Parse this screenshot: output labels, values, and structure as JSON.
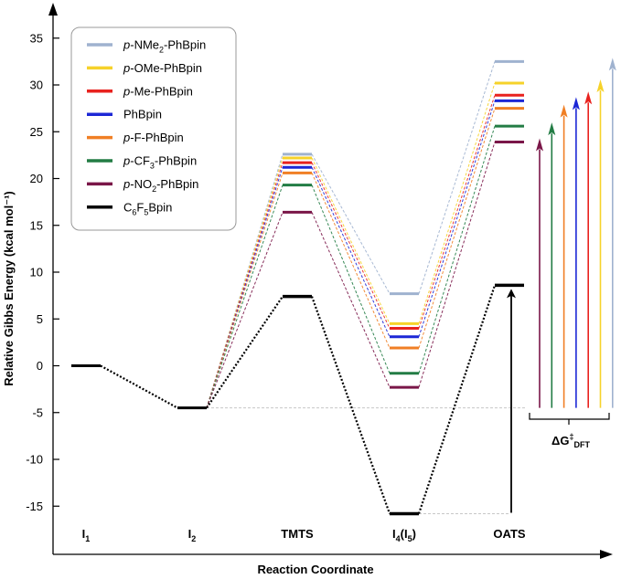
{
  "chart_data": {
    "type": "line",
    "title": "",
    "xlabel": "Reaction Coordinate",
    "ylabel": "Relative Gibbs Energy (kcal mol⁻¹)",
    "ylim": [
      -17,
      37
    ],
    "yticks": [
      35,
      30,
      25,
      20,
      15,
      10,
      5,
      0,
      -5,
      -10,
      -15
    ],
    "stages": [
      {
        "key": "I1",
        "base": "I",
        "sub": "1",
        "after": "",
        "sub2": "",
        "after2": ""
      },
      {
        "key": "I2",
        "base": "I",
        "sub": "2",
        "after": "",
        "sub2": "",
        "after2": ""
      },
      {
        "key": "TMTS",
        "base": "TMTS",
        "sub": "",
        "after": "",
        "sub2": "",
        "after2": ""
      },
      {
        "key": "I4",
        "base": "I",
        "sub": "4",
        "after": "(I",
        "sub2": "5",
        "after2": ")"
      },
      {
        "key": "OATS",
        "base": "OATS",
        "sub": "",
        "after": "",
        "sub2": "",
        "after2": ""
      }
    ],
    "shared_start": {
      "I1": 0.0,
      "I2": -4.5
    },
    "series": [
      {
        "name": "p-NMe2-PhBpin",
        "color": "#9fb2cf",
        "lparts": [
          {
            "t": "p",
            "i": true
          },
          {
            "t": "-NMe"
          },
          {
            "t": "2",
            "s": true
          },
          {
            "t": "-PhBpin"
          }
        ],
        "values": {
          "TMTS": 22.6,
          "I4": 7.7,
          "OATS": 32.5
        }
      },
      {
        "name": "p-OMe-PhBpin",
        "color": "#f6d22a",
        "lparts": [
          {
            "t": "p",
            "i": true
          },
          {
            "t": "-OMe-PhBpin"
          }
        ],
        "values": {
          "TMTS": 22.2,
          "I4": 4.5,
          "OATS": 30.2
        }
      },
      {
        "name": "p-Me-PhBpin",
        "color": "#e8221e",
        "lparts": [
          {
            "t": "p",
            "i": true
          },
          {
            "t": "-Me-PhBpin"
          }
        ],
        "values": {
          "TMTS": 21.7,
          "I4": 4.0,
          "OATS": 28.9
        }
      },
      {
        "name": "PhBpin",
        "color": "#1c27d6",
        "lparts": [
          {
            "t": "PhBpin"
          }
        ],
        "values": {
          "TMTS": 21.2,
          "I4": 3.1,
          "OATS": 28.3
        }
      },
      {
        "name": "p-F-PhBpin",
        "color": "#f07f25",
        "lparts": [
          {
            "t": "p",
            "i": true
          },
          {
            "t": "-F-PhBpin"
          }
        ],
        "values": {
          "TMTS": 20.6,
          "I4": 1.9,
          "OATS": 27.5
        }
      },
      {
        "name": "p-CF3-PhBpin",
        "color": "#227c44",
        "lparts": [
          {
            "t": "p",
            "i": true
          },
          {
            "t": "-CF"
          },
          {
            "t": "3",
            "s": true
          },
          {
            "t": "-PhBpin"
          }
        ],
        "values": {
          "TMTS": 19.3,
          "I4": -0.8,
          "OATS": 25.6
        }
      },
      {
        "name": "p-NO2-PhBpin",
        "color": "#7a1648",
        "lparts": [
          {
            "t": "p",
            "i": true
          },
          {
            "t": "-NO"
          },
          {
            "t": "2",
            "s": true
          },
          {
            "t": "-PhBpin"
          }
        ],
        "values": {
          "TMTS": 16.4,
          "I4": -2.3,
          "OATS": 23.9
        }
      },
      {
        "name": "C6F5Bpin",
        "color": "#000000",
        "lparts": [
          {
            "t": "C"
          },
          {
            "t": "6",
            "s": true
          },
          {
            "t": "F"
          },
          {
            "t": "5",
            "s": true
          },
          {
            "t": "Bpin"
          }
        ],
        "values": {
          "TMTS": 7.4,
          "I4": -15.8,
          "OATS": 8.6
        }
      }
    ],
    "delta_g_label": {
      "base": "ΔG",
      "sup": "‡",
      "sub": "DFT"
    }
  }
}
